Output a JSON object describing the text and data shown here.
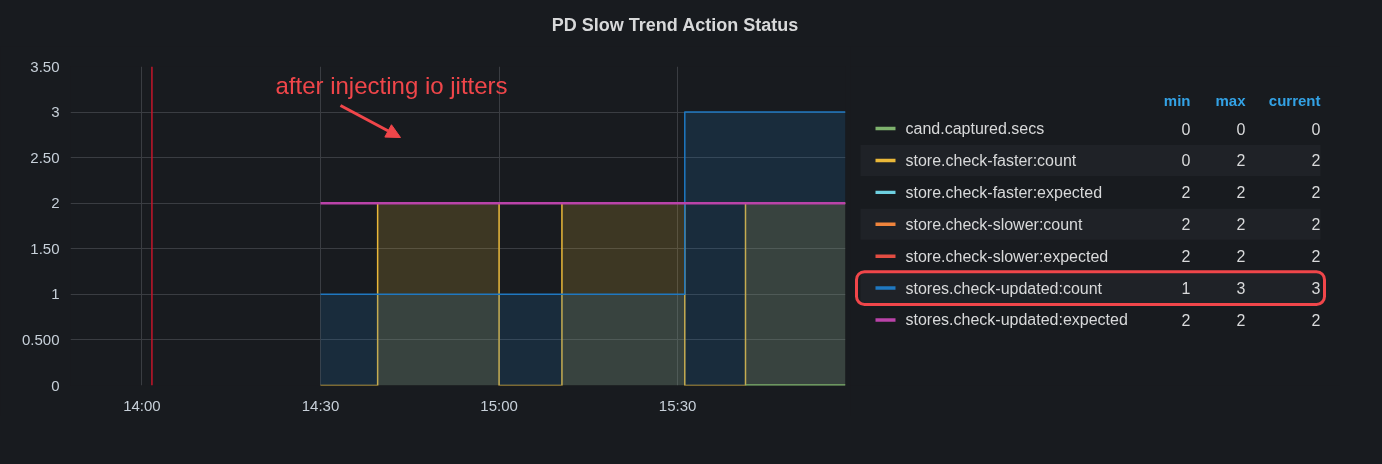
{
  "chart_data": {
    "type": "area",
    "title": "PD Slow Trend Action Status",
    "xlim": [
      13.8,
      15.97
    ],
    "xticks": [
      {
        "value": 14,
        "label": "14:00"
      },
      {
        "value": 14.5,
        "label": "14:30"
      },
      {
        "value": 15,
        "label": "15:00"
      },
      {
        "value": 15.5,
        "label": "15:30"
      }
    ],
    "ylim": [
      0,
      3.5
    ],
    "yticks": [
      0,
      {
        "value": 0.5,
        "label": "0.500"
      },
      1,
      {
        "value": 1.5,
        "label": "1.50"
      },
      2,
      {
        "value": 2.5,
        "label": "2.50"
      },
      3,
      {
        "value": 3.5,
        "label": "3.50"
      }
    ],
    "grid": true,
    "legend": "right",
    "marker": "none",
    "line_style": "solid",
    "legend_title": "min",
    "series": [
      {
        "name": "cand.captured.secs",
        "type": "line",
        "color": "#7eb26d",
        "x": [
          15.69,
          15.97
        ],
        "values": [
          0,
          0
        ]
      },
      {
        "name": "store.check-faster:count",
        "color": "#eab839",
        "x": [
          14.5,
          14.66,
          14.66,
          15.0,
          15.0,
          15.176,
          15.176,
          15.52,
          15.52,
          15.69,
          15.69,
          15.97
        ],
        "values": [
          0,
          0,
          2,
          2,
          0,
          0,
          2,
          2,
          0,
          0,
          2,
          2
        ]
      },
      {
        "name": "store.check-faster:expected",
        "color": "#6ed0e0",
        "values": [
          null,
          null
        ]
      },
      {
        "name": "store.check-slower:count",
        "color": "#ef843c",
        "values": [
          null,
          null
        ]
      },
      {
        "name": "store.check-slower:expected",
        "color": "#e24d42",
        "values": [
          null,
          null
        ]
      },
      {
        "name": "stores.check-updated:count",
        "color": "#1f78c1",
        "x": [
          14.5,
          15.52,
          15.52,
          15.97
        ],
        "values": [
          1,
          1,
          3,
          3
        ]
      },
      {
        "name": "stores.check-updated:expected",
        "type": "line",
        "color": "#ba43a9",
        "x": [
          14.5,
          15.97
        ],
        "values": [
          2,
          2
        ]
      }
    ],
    "ref_lines": [
      {
        "axis": "x",
        "value": 14.028,
        "color": "#c4162a"
      }
    ],
    "annotations": [
      "after injecting io jitters",
      "max",
      "current",
      "0",
      "0",
      "0",
      "0",
      "2",
      "2",
      "2",
      "2",
      "2",
      "2",
      "2",
      "2",
      "2",
      "2",
      "2",
      "1",
      "3",
      "3",
      "2",
      "2",
      "2"
    ]
  }
}
